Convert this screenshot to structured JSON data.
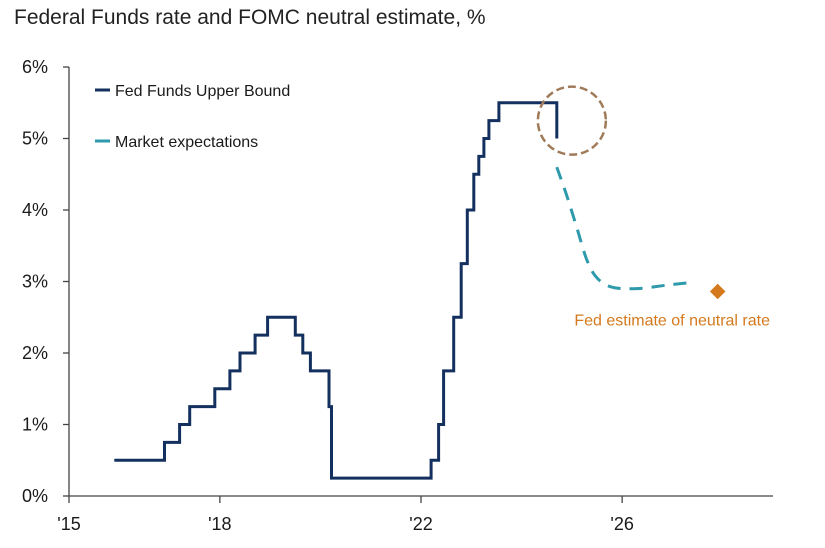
{
  "chart_data": {
    "type": "line",
    "title": "Federal Funds rate and FOMC neutral estimate, %",
    "xlabel": "",
    "ylabel": "",
    "xlim": [
      2015,
      2029
    ],
    "ylim": [
      0,
      6
    ],
    "x_ticks": [
      {
        "value": 2015,
        "label": "'15"
      },
      {
        "value": 2018,
        "label": "'18"
      },
      {
        "value": 2022,
        "label": "'22"
      },
      {
        "value": 2026,
        "label": "'26"
      }
    ],
    "y_ticks": [
      {
        "value": 0,
        "label": "0%"
      },
      {
        "value": 1,
        "label": "1%"
      },
      {
        "value": 2,
        "label": "2%"
      },
      {
        "value": 3,
        "label": "3%"
      },
      {
        "value": 4,
        "label": "4%"
      },
      {
        "value": 5,
        "label": "5%"
      },
      {
        "value": 6,
        "label": "6%"
      }
    ],
    "grid": false,
    "legend_position": "top-left",
    "series": [
      {
        "name": "Fed Funds Upper Bound",
        "style": "step",
        "color": "#14305f",
        "points": [
          [
            2015.9,
            0.5
          ],
          [
            2016.9,
            0.5
          ],
          [
            2016.9,
            0.75
          ],
          [
            2017.2,
            0.75
          ],
          [
            2017.2,
            1.0
          ],
          [
            2017.4,
            1.0
          ],
          [
            2017.4,
            1.25
          ],
          [
            2017.9,
            1.25
          ],
          [
            2017.9,
            1.5
          ],
          [
            2018.2,
            1.5
          ],
          [
            2018.2,
            1.75
          ],
          [
            2018.4,
            1.75
          ],
          [
            2018.4,
            2.0
          ],
          [
            2018.7,
            2.0
          ],
          [
            2018.7,
            2.25
          ],
          [
            2018.95,
            2.25
          ],
          [
            2018.95,
            2.5
          ],
          [
            2019.5,
            2.5
          ],
          [
            2019.5,
            2.25
          ],
          [
            2019.65,
            2.25
          ],
          [
            2019.65,
            2.0
          ],
          [
            2019.8,
            2.0
          ],
          [
            2019.8,
            1.75
          ],
          [
            2020.17,
            1.75
          ],
          [
            2020.17,
            1.25
          ],
          [
            2020.22,
            1.25
          ],
          [
            2020.22,
            0.25
          ],
          [
            2022.2,
            0.25
          ],
          [
            2022.2,
            0.5
          ],
          [
            2022.35,
            0.5
          ],
          [
            2022.35,
            1.0
          ],
          [
            2022.45,
            1.0
          ],
          [
            2022.45,
            1.75
          ],
          [
            2022.65,
            1.75
          ],
          [
            2022.65,
            2.5
          ],
          [
            2022.8,
            2.5
          ],
          [
            2022.8,
            3.25
          ],
          [
            2022.92,
            3.25
          ],
          [
            2022.92,
            4.0
          ],
          [
            2023.05,
            4.0
          ],
          [
            2023.05,
            4.5
          ],
          [
            2023.15,
            4.5
          ],
          [
            2023.15,
            4.75
          ],
          [
            2023.25,
            4.75
          ],
          [
            2023.25,
            5.0
          ],
          [
            2023.35,
            5.0
          ],
          [
            2023.35,
            5.25
          ],
          [
            2023.55,
            5.25
          ],
          [
            2023.55,
            5.5
          ],
          [
            2024.7,
            5.5
          ],
          [
            2024.7,
            5.0
          ]
        ]
      },
      {
        "name": "Market expectations",
        "style": "dashed-smooth",
        "color": "#2e9aac",
        "points": [
          [
            2024.7,
            4.6
          ],
          [
            2024.9,
            4.2
          ],
          [
            2025.1,
            3.75
          ],
          [
            2025.3,
            3.3
          ],
          [
            2025.5,
            3.05
          ],
          [
            2025.8,
            2.92
          ],
          [
            2026.3,
            2.9
          ],
          [
            2026.9,
            2.95
          ],
          [
            2027.3,
            2.98
          ]
        ]
      }
    ],
    "annotations": [
      {
        "type": "marker",
        "shape": "diamond",
        "label": "Fed estimate of neutral rate",
        "x": 2027.9,
        "y": 2.86,
        "color": "#d4791e"
      },
      {
        "type": "highlight-circle",
        "x": 2025.0,
        "y": 5.25,
        "color": "#a07b5a"
      }
    ]
  }
}
